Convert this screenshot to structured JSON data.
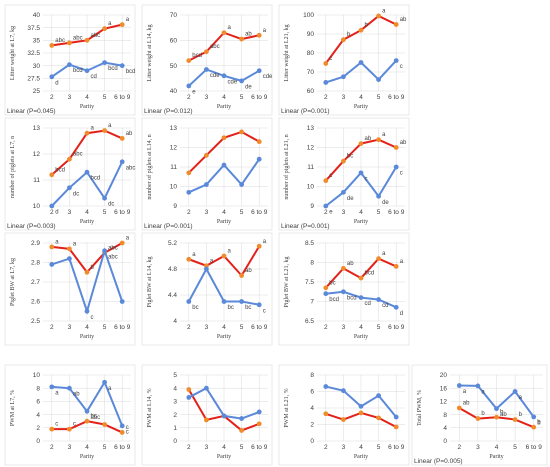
{
  "colors": {
    "red": "#e32119",
    "blue": "#5b89d9",
    "red_marker": "#f08b2c",
    "blue_marker": "#5b89d9"
  },
  "chart_data": [
    {
      "type": "line",
      "xlabel": "Parity",
      "ylabel": "Litter weight at L7, kg",
      "categories": [
        "2",
        "3",
        "4",
        "5",
        "6 to 9"
      ],
      "ylim": [
        25,
        40
      ],
      "yticks": [
        25,
        27.5,
        30,
        32.5,
        35,
        37.5,
        40
      ],
      "series": [
        {
          "color": "red",
          "values": [
            34,
            34.5,
            35,
            37.3,
            38.1
          ],
          "labels": [
            "abc",
            "abc",
            "abc",
            "a",
            "a"
          ]
        },
        {
          "color": "blue",
          "values": [
            27.8,
            30.2,
            29,
            30.6,
            30
          ],
          "labels": [
            "d",
            "bcd",
            "cd",
            "bcd",
            "bcd"
          ]
        }
      ],
      "trend_text": "Linear (P=0.045)"
    },
    {
      "type": "line",
      "xlabel": "Parity",
      "ylabel": "Litter weight at L14, kg",
      "categories": [
        "2",
        "3",
        "4",
        "5",
        "6 to 9"
      ],
      "ylim": [
        40,
        70
      ],
      "yticks": [
        40,
        50,
        60,
        70
      ],
      "series": [
        {
          "color": "red",
          "values": [
            52,
            55.5,
            63,
            60.5,
            62
          ],
          "labels": [
            "bcd",
            "abc",
            "a",
            "ab",
            "a"
          ]
        },
        {
          "color": "blue",
          "values": [
            42,
            48.5,
            46,
            44,
            48
          ],
          "labels": [
            "e",
            "cde",
            "cde",
            "de",
            "cde"
          ]
        }
      ],
      "trend_text": "Linear (P=0.012)"
    },
    {
      "type": "line",
      "xlabel": "Parity",
      "ylabel": "Litter weight at L21, kg",
      "categories": [
        "2",
        "3",
        "4",
        "5",
        "6 to 9"
      ],
      "ylim": [
        60,
        100
      ],
      "yticks": [
        60,
        70,
        80,
        90,
        100
      ],
      "series": [
        {
          "color": "red",
          "values": [
            74.5,
            87,
            92,
            99.5,
            95
          ],
          "labels": [
            "c",
            "b",
            "b",
            "a",
            "ab"
          ]
        },
        {
          "color": "blue",
          "values": [
            64.5,
            67.5,
            75,
            66,
            76
          ],
          "labels": [
            "",
            "",
            "",
            "",
            "c"
          ]
        }
      ],
      "trend_text": "Linear (P=0.001)"
    },
    {
      "type": "line",
      "xlabel": "Parity",
      "ylabel": "number of piglets at L7, n",
      "categories": [
        "2",
        "3",
        "4",
        "5",
        "6 to 9"
      ],
      "ylim": [
        10,
        13
      ],
      "yticks": [
        10,
        11,
        12,
        13
      ],
      "series": [
        {
          "color": "red",
          "values": [
            11.2,
            11.8,
            12.8,
            12.9,
            12.6
          ],
          "labels": [
            "bcd",
            "abc",
            "a",
            "a",
            "ab"
          ]
        },
        {
          "color": "blue",
          "values": [
            10,
            10.7,
            11.3,
            10.3,
            11.7
          ],
          "labels": [
            "d",
            "dc",
            "bcd",
            "dc",
            "abc"
          ]
        }
      ],
      "trend_text": "Linear (P=0.003)"
    },
    {
      "type": "line",
      "xlabel": "Parity",
      "ylabel": "number of piglets at L14, n",
      "categories": [
        "2",
        "3",
        "4",
        "5",
        "6 to 9"
      ],
      "ylim": [
        9,
        13
      ],
      "yticks": [
        9,
        10,
        11,
        12,
        13
      ],
      "series": [
        {
          "color": "red",
          "values": [
            10.7,
            11.6,
            12.5,
            12.8,
            12.3
          ],
          "labels": [
            "",
            "",
            "",
            "",
            ""
          ]
        },
        {
          "color": "blue",
          "values": [
            9.7,
            10.1,
            11.1,
            10.1,
            11.4
          ],
          "labels": [
            "",
            "",
            "",
            "",
            ""
          ]
        }
      ],
      "trend_text": "Linear (P=0.001)"
    },
    {
      "type": "line",
      "xlabel": "Parity",
      "ylabel": "number of piglets at L21, n",
      "categories": [
        "2",
        "3",
        "4",
        "5",
        "6 to 9"
      ],
      "ylim": [
        9,
        13
      ],
      "yticks": [
        9,
        10,
        11,
        12,
        13
      ],
      "series": [
        {
          "color": "red",
          "values": [
            10.3,
            11.3,
            12.2,
            12.4,
            12
          ],
          "labels": [
            "c",
            "bc",
            "ab",
            "a",
            "ab"
          ]
        },
        {
          "color": "blue",
          "values": [
            9,
            9.7,
            10.7,
            9.5,
            11
          ],
          "labels": [
            "e",
            "de",
            "c",
            "de",
            "c"
          ]
        }
      ],
      "trend_text": "Linear (P=0.001)"
    },
    {
      "type": "line",
      "xlabel": "Parity",
      "ylabel": "Piglet BW at L7, kg",
      "categories": [
        "2",
        "3",
        "4",
        "5",
        "6 to 9"
      ],
      "ylim": [
        2.5,
        2.9
      ],
      "yticks": [
        2.5,
        2.6,
        2.7,
        2.8,
        2.9
      ],
      "series": [
        {
          "color": "red",
          "values": [
            2.88,
            2.87,
            2.75,
            2.85,
            2.9
          ],
          "labels": [
            "a",
            "a",
            "b",
            "abc",
            "a"
          ]
        },
        {
          "color": "blue",
          "values": [
            2.79,
            2.82,
            2.55,
            2.86,
            2.6
          ],
          "labels": [
            "",
            "",
            "c",
            "abc",
            ""
          ]
        }
      ],
      "trend_text": ""
    },
    {
      "type": "line",
      "xlabel": "Parity",
      "ylabel": "Piglet BW at L14, kg",
      "categories": [
        "2",
        "3",
        "4",
        "5",
        "6 to 9"
      ],
      "ylim": [
        4,
        5.2
      ],
      "yticks": [
        4,
        4.4,
        4.8,
        5.2
      ],
      "series": [
        {
          "color": "red",
          "values": [
            4.95,
            4.85,
            5,
            4.7,
            5.15
          ],
          "labels": [
            "a",
            "a",
            "a",
            "ab",
            "a"
          ]
        },
        {
          "color": "blue",
          "values": [
            4.3,
            4.8,
            4.3,
            4.3,
            4.25
          ],
          "labels": [
            "bc",
            "",
            "bc",
            "bc",
            "c"
          ]
        }
      ],
      "trend_text": ""
    },
    {
      "type": "line",
      "xlabel": "Parity",
      "ylabel": "Piglet BW at L21, kg",
      "categories": [
        "2",
        "3",
        "4",
        "5",
        "6 to 9"
      ],
      "ylim": [
        6.5,
        8.5
      ],
      "yticks": [
        6.5,
        7,
        7.5,
        8,
        8.5
      ],
      "series": [
        {
          "color": "red",
          "values": [
            7.35,
            7.85,
            7.6,
            8.1,
            7.9
          ],
          "labels": [
            "bc",
            "ab",
            "bcd",
            "a",
            "a"
          ]
        },
        {
          "color": "blue",
          "values": [
            7.2,
            7.25,
            7.1,
            7.05,
            6.85
          ],
          "labels": [
            "bcd",
            "bcd",
            "cd",
            "cd",
            "d"
          ]
        }
      ],
      "trend_text": ""
    },
    {
      "type": "line",
      "xlabel": "Parity",
      "ylabel": "PWM at L7, %",
      "categories": [
        "2",
        "3",
        "4",
        "5",
        "6 to 9"
      ],
      "ylim": [
        0,
        10
      ],
      "yticks": [
        0,
        2,
        4,
        6,
        8,
        10
      ],
      "series": [
        {
          "color": "red",
          "values": [
            1.8,
            1.8,
            3,
            2.5,
            1.3
          ],
          "labels": [
            "c",
            "c",
            "bc",
            "",
            "c"
          ]
        },
        {
          "color": "blue",
          "values": [
            8.2,
            8,
            4.5,
            8.9,
            2.3
          ],
          "labels": [
            "a",
            "ab",
            "abc",
            "a",
            "c"
          ]
        }
      ],
      "trend_text": ""
    },
    {
      "type": "line",
      "xlabel": "Parity",
      "ylabel": "PWM at L14, %",
      "categories": [
        "2",
        "3",
        "4",
        "5",
        "6 to 9"
      ],
      "ylim": [
        0,
        5
      ],
      "yticks": [
        0,
        1,
        2,
        3,
        4,
        5
      ],
      "series": [
        {
          "color": "red",
          "values": [
            3.9,
            1.6,
            1.9,
            0.8,
            1.3
          ],
          "labels": [
            "",
            "",
            "",
            "",
            ""
          ]
        },
        {
          "color": "blue",
          "values": [
            3.3,
            4,
            1.9,
            1.7,
            2.2
          ],
          "labels": [
            "",
            "",
            "",
            "",
            ""
          ]
        }
      ],
      "trend_text": ""
    },
    {
      "type": "line",
      "xlabel": "Parity",
      "ylabel": "PWM at L21, %",
      "categories": [
        "2",
        "3",
        "4",
        "5",
        "6 to 9"
      ],
      "ylim": [
        0,
        8
      ],
      "yticks": [
        0,
        2,
        4,
        6,
        8
      ],
      "series": [
        {
          "color": "red",
          "values": [
            3.3,
            2.6,
            3.4,
            2.8,
            1.7
          ],
          "labels": [
            "",
            "",
            "",
            "",
            ""
          ]
        },
        {
          "color": "blue",
          "values": [
            6.6,
            6.1,
            4.2,
            5.5,
            2.9
          ],
          "labels": [
            "",
            "",
            "",
            "",
            ""
          ]
        }
      ],
      "trend_text": ""
    },
    {
      "type": "line",
      "xlabel": "Parity",
      "ylabel": "Total PWM, %",
      "categories": [
        "2",
        "3",
        "4",
        "5",
        "6 to 9"
      ],
      "ylim": [
        0,
        20
      ],
      "yticks": [
        0,
        4,
        8,
        12,
        16,
        20
      ],
      "series": [
        {
          "color": "red",
          "values": [
            10,
            6.8,
            7.2,
            6.5,
            4.2
          ],
          "labels": [
            "ab",
            "b",
            "b",
            "b",
            "b"
          ]
        },
        {
          "color": "blue",
          "values": [
            16.8,
            16.7,
            9.8,
            15,
            7.3
          ],
          "labels": [
            "a",
            "a",
            "ab",
            "a",
            "b"
          ]
        }
      ],
      "trend_text": "Linear (P=0.005)"
    }
  ]
}
